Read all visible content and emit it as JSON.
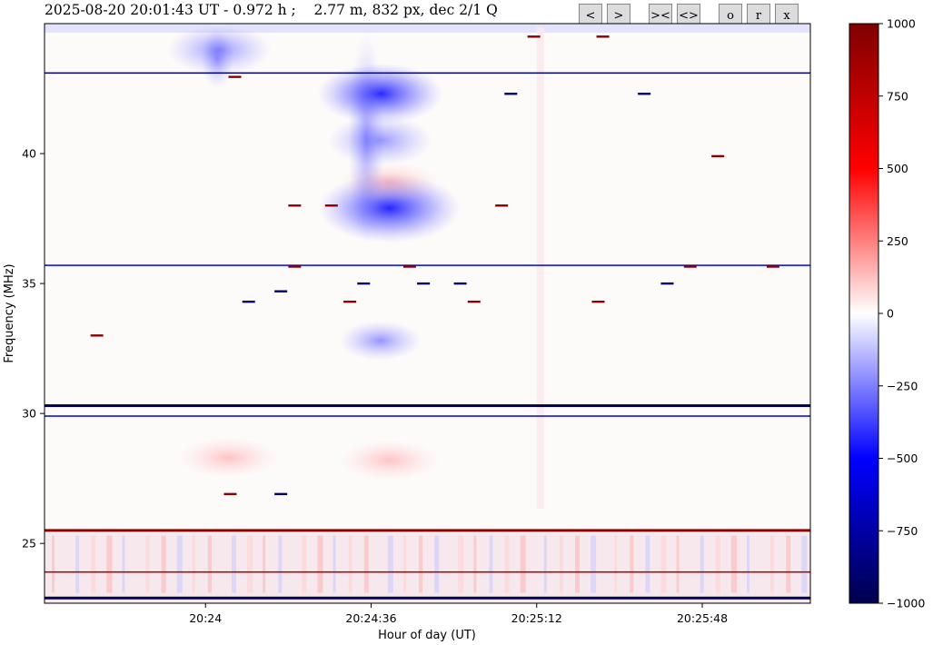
{
  "header": {
    "title": "2025-08-20 20:01:43 UT - 0.972 h ;    2.77 m, 832 px, dec 2/1 Q"
  },
  "toolbar": {
    "buttons": [
      {
        "label": "<",
        "name": "prev-button"
      },
      {
        "label": ">",
        "name": "next-button"
      },
      {
        "label": "><",
        "name": "zoom-in-button"
      },
      {
        "label": "<>",
        "name": "zoom-out-button"
      },
      {
        "label": "o",
        "name": "origin-button"
      },
      {
        "label": "r",
        "name": "reset-button"
      },
      {
        "label": "x",
        "name": "close-button"
      }
    ]
  },
  "chart_data": {
    "type": "heatmap",
    "xlabel": "Hour of day (UT)",
    "ylabel": "Frequency (MHz)",
    "xticks": [
      {
        "label": "20:24",
        "value": 0.0
      },
      {
        "label": "20:24:36",
        "value": 36.0
      },
      {
        "label": "20:25:12",
        "value": 72.0
      },
      {
        "label": "20:25:48",
        "value": 108.0
      }
    ],
    "xlim_seconds_from_2024": [
      -35.0,
      131.5
    ],
    "yticks": [
      25,
      30,
      35,
      40
    ],
    "ylim": [
      22.7,
      45.0
    ],
    "colorbar": {
      "ticks": [
        1000,
        750,
        500,
        250,
        0,
        -250,
        -500,
        -750,
        -1000
      ],
      "range": [
        -1000,
        1000
      ],
      "colormap": "seismic",
      "colors": {
        "low": "#00004c",
        "mid_low": "#0000ff",
        "zero": "#ffffff",
        "mid_high": "#ff0000",
        "high": "#800000"
      }
    },
    "features": [
      {
        "kind": "blob",
        "t": 3,
        "f": 44.0,
        "value": -450
      },
      {
        "kind": "blob",
        "t": 40,
        "f": 37.9,
        "value": -800
      },
      {
        "kind": "blob",
        "t": 38,
        "f": 40.5,
        "value": -450
      },
      {
        "kind": "blob",
        "t": 38,
        "f": 42.3,
        "value": -650
      },
      {
        "kind": "blob",
        "t": 38,
        "f": 32.8,
        "value": -250
      },
      {
        "kind": "blob",
        "t": 40,
        "f": 28.2,
        "value": 120
      },
      {
        "kind": "blob",
        "t": 5,
        "f": 28.3,
        "value": 100
      },
      {
        "kind": "blob",
        "t": 40,
        "f": 38.9,
        "value": 200
      },
      {
        "kind": "hline",
        "f": 43.1,
        "value": -900
      },
      {
        "kind": "hline",
        "f": 35.7,
        "value": -550
      },
      {
        "kind": "hline",
        "f": 30.3,
        "value": -1000
      },
      {
        "kind": "hline",
        "f": 29.9,
        "value": -600
      },
      {
        "kind": "hline",
        "f": 25.5,
        "value": 950
      },
      {
        "kind": "hline",
        "f": 23.9,
        "value": 850
      },
      {
        "kind": "hline",
        "f": 22.9,
        "value": -1000
      }
    ]
  }
}
